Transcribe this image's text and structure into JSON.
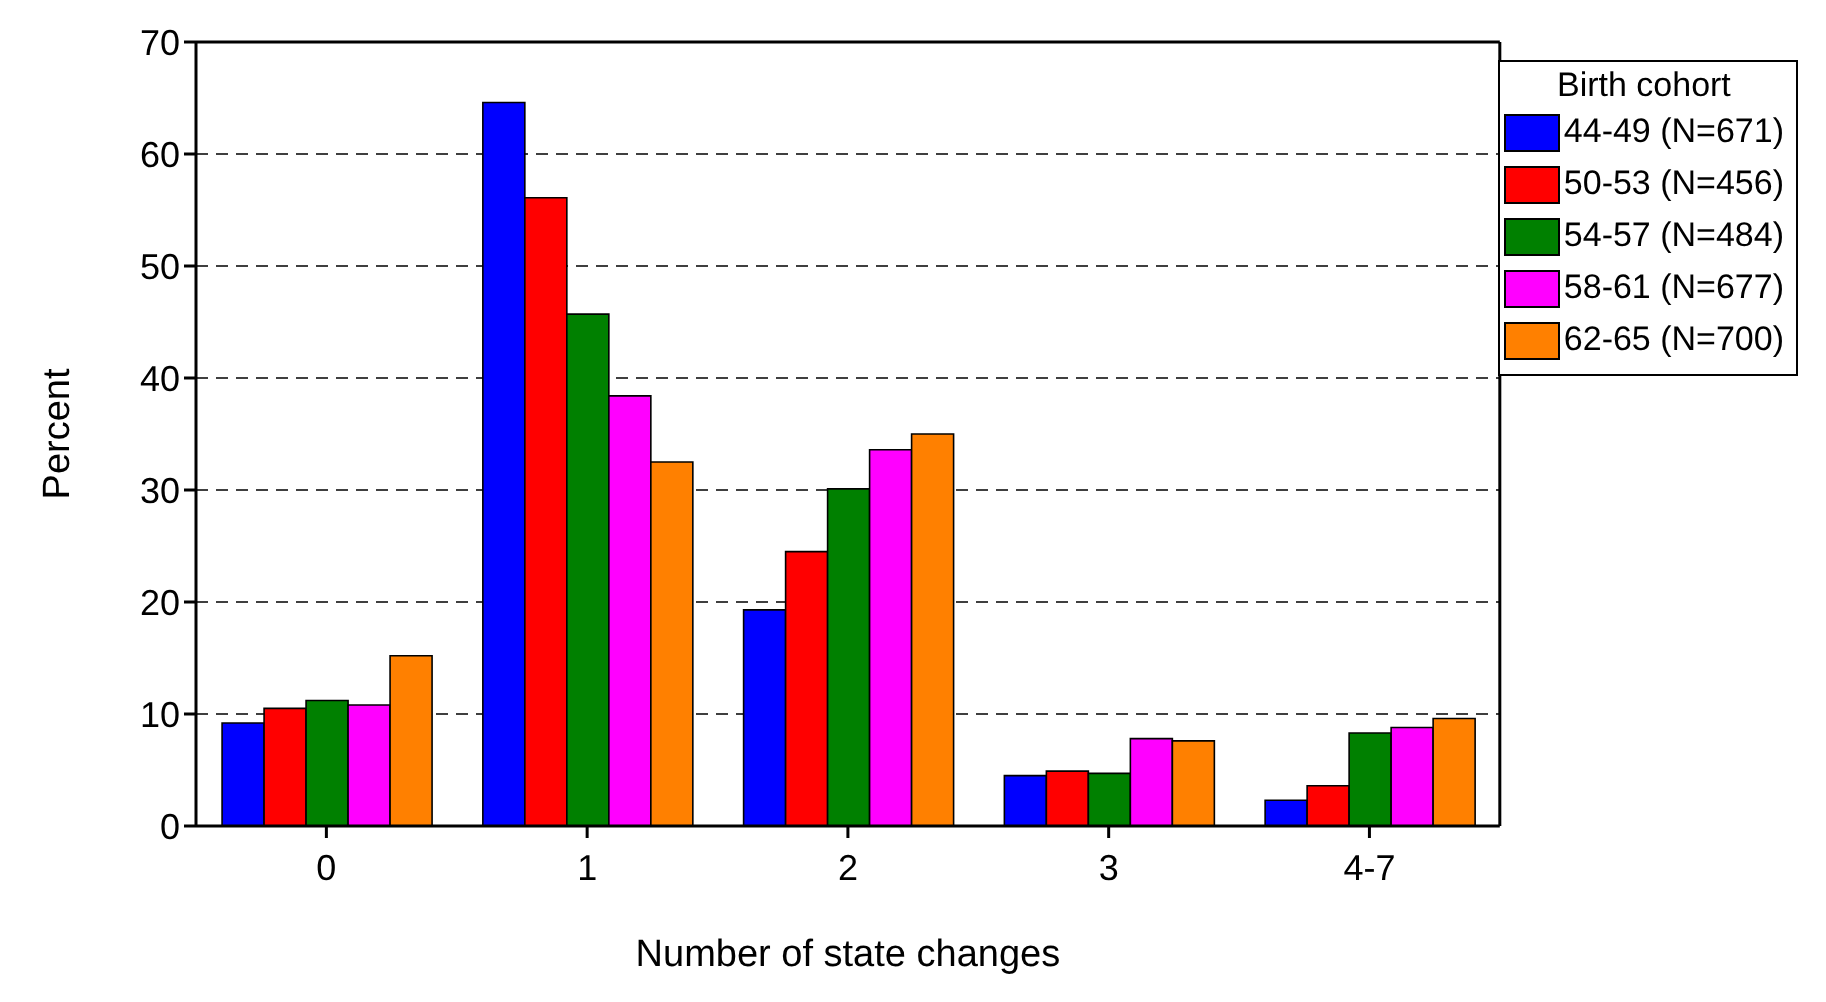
{
  "chart_data": {
    "type": "bar",
    "xlabel": "Number of state changes",
    "ylabel": "Percent",
    "legend_title": "Birth cohort",
    "categories": [
      "0",
      "1",
      "2",
      "3",
      "4-7"
    ],
    "series": [
      {
        "name": "44-49 (N=671)",
        "color": "#0000ff",
        "values": [
          9.2,
          64.6,
          19.3,
          4.5,
          2.3
        ]
      },
      {
        "name": "50-53 (N=456)",
        "color": "#ff0000",
        "values": [
          10.5,
          56.1,
          24.5,
          4.9,
          3.6
        ]
      },
      {
        "name": "54-57 (N=484)",
        "color": "#008000",
        "values": [
          11.2,
          45.7,
          30.1,
          4.7,
          8.3
        ]
      },
      {
        "name": "58-61 (N=677)",
        "color": "#ff00ff",
        "values": [
          10.8,
          38.4,
          33.6,
          7.8,
          8.8
        ]
      },
      {
        "name": "62-65 (N=700)",
        "color": "#ff8000",
        "values": [
          15.2,
          32.5,
          35.0,
          7.6,
          9.6
        ]
      }
    ],
    "ylim": [
      0,
      70
    ],
    "yticks": [
      0,
      10,
      20,
      30,
      40,
      50,
      60,
      70
    ],
    "grid": "y",
    "legend": "top right"
  }
}
